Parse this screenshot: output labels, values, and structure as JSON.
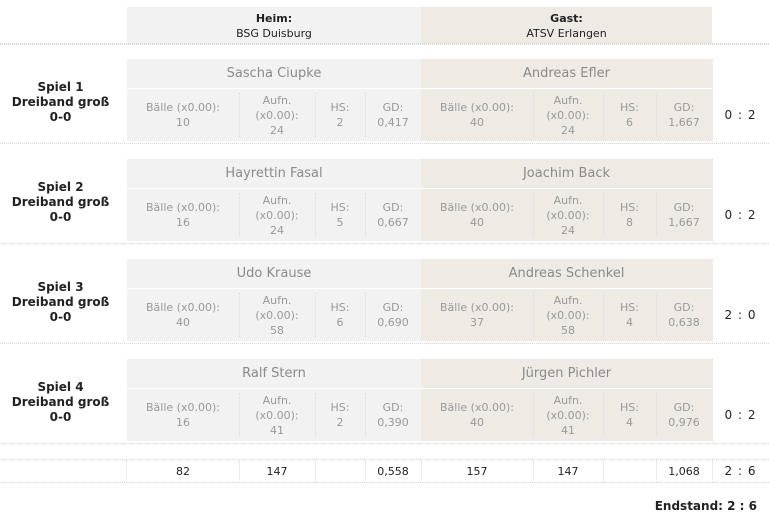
{
  "header": {
    "home_caption": "Heim:",
    "home_team": "BSG Duisburg",
    "guest_caption": "Gast:",
    "guest_team": "ATSV Erlangen"
  },
  "labels": {
    "balls": "Bälle (x0.00):",
    "innings_a": "Aufn.",
    "innings_b": "(x0.00):",
    "hs": "HS:",
    "gd": "GD:"
  },
  "games": [
    {
      "title": "Spiel 1",
      "discipline": "Dreiband groß",
      "state": "0-0",
      "home": {
        "name": "Sascha Ciupke",
        "balls": "10",
        "innings": "24",
        "hs": "2",
        "gd": "0,417"
      },
      "guest": {
        "name": "Andreas Efler",
        "balls": "40",
        "innings": "24",
        "hs": "6",
        "gd": "1,667"
      },
      "score": "0 : 2"
    },
    {
      "title": "Spiel 2",
      "discipline": "Dreiband groß",
      "state": "0-0",
      "home": {
        "name": "Hayrettin Fasal",
        "balls": "16",
        "innings": "24",
        "hs": "5",
        "gd": "0,667"
      },
      "guest": {
        "name": "Joachim Back",
        "balls": "40",
        "innings": "24",
        "hs": "8",
        "gd": "1,667"
      },
      "score": "0 : 2"
    },
    {
      "title": "Spiel 3",
      "discipline": "Dreiband groß",
      "state": "0-0",
      "home": {
        "name": "Udo Krause",
        "balls": "40",
        "innings": "58",
        "hs": "6",
        "gd": "0,690"
      },
      "guest": {
        "name": "Andreas Schenkel",
        "balls": "37",
        "innings": "58",
        "hs": "4",
        "gd": "0,638"
      },
      "score": "2 : 0"
    },
    {
      "title": "Spiel 4",
      "discipline": "Dreiband groß",
      "state": "0-0",
      "home": {
        "name": "Ralf Stern",
        "balls": "16",
        "innings": "41",
        "hs": "2",
        "gd": "0,390"
      },
      "guest": {
        "name": "Jürgen Pichler",
        "balls": "40",
        "innings": "41",
        "hs": "4",
        "gd": "0,976"
      },
      "score": "0 : 2"
    }
  ],
  "totals": {
    "home_balls": "82",
    "home_innings": "147",
    "home_gd": "0,558",
    "guest_balls": "157",
    "guest_innings": "147",
    "guest_gd": "1,068",
    "score": "2 : 6"
  },
  "endstand": "Endstand: 2 : 6"
}
